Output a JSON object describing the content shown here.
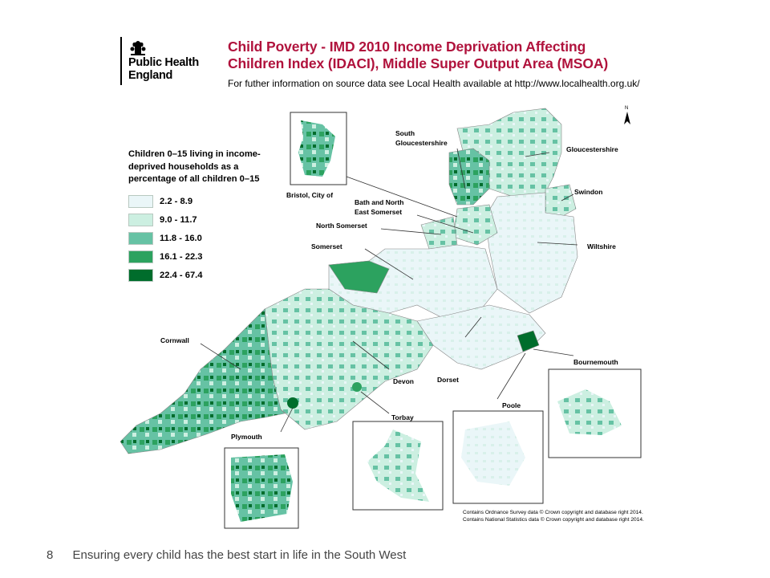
{
  "logo": {
    "line1": "Public Health",
    "line2": "England"
  },
  "title": {
    "line1": "Child Poverty - IMD 2010 Income Deprivation Affecting",
    "line2": "Children Index (IDACI), Middle Super Output Area (MSOA)",
    "subtitle": "For futher information on source data see Local Health available at http://www.localhealth.org.uk/"
  },
  "legend": {
    "title": "Children 0–15 living in income-deprived households as a percentage of all children 0–15",
    "items": [
      {
        "label": "2.2 - 8.9",
        "color": "#eaf6f8"
      },
      {
        "label": "9.0 - 11.7",
        "color": "#ccefe1"
      },
      {
        "label": "11.8 - 16.0",
        "color": "#66c2a4"
      },
      {
        "label": "16.1 - 22.3",
        "color": "#2ca25f"
      },
      {
        "label": "22.4 - 67.4",
        "color": "#006d2c"
      }
    ]
  },
  "map_labels": {
    "south_glos_1": "South",
    "south_glos_2": "Gloucestershire",
    "gloucestershire": "Gloucestershire",
    "swindon": "Swindon",
    "wiltshire": "Wiltshire",
    "bristol": "Bristol, City of",
    "bathnes_1": "Bath and North",
    "bathnes_2": "East Somerset",
    "north_somerset": "North Somerset",
    "somerset": "Somerset",
    "cornwall": "Cornwall",
    "devon": "Devon",
    "dorset": "Dorset",
    "bournemouth": "Bournemouth",
    "poole": "Poole",
    "torbay": "Torbay",
    "plymouth": "Plymouth",
    "north": "N"
  },
  "copyright": {
    "line1": "Contains Ordnance Survey data © Crown copyright and database right 2014.",
    "line2": "Contains National Statistics data © Crown copyright and database right 2014."
  },
  "footer": {
    "page_number": "8",
    "text": "Ensuring every child has the best start in life in the South West"
  }
}
